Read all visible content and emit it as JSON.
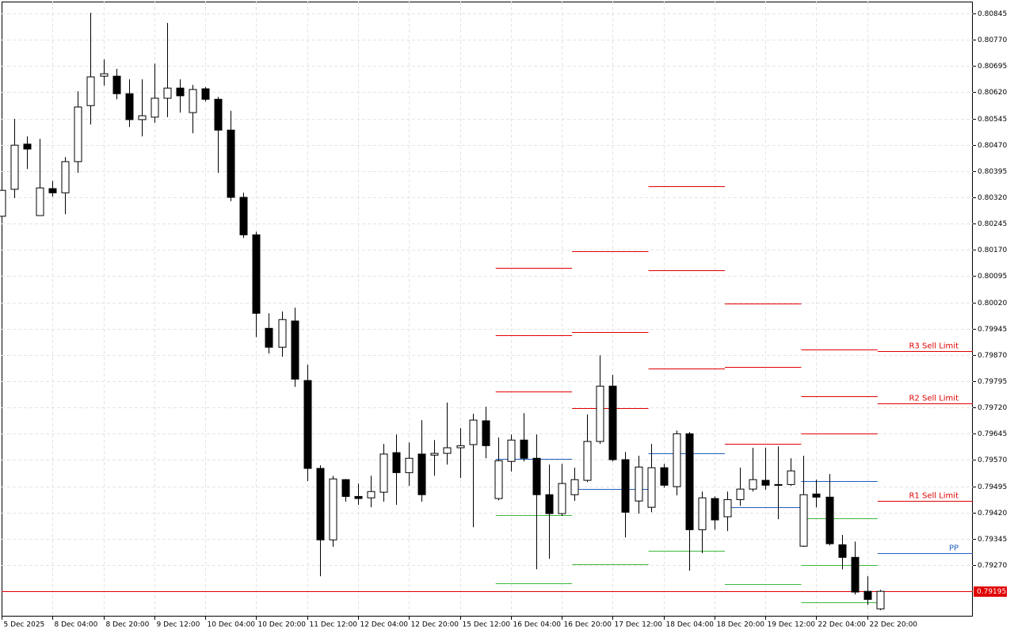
{
  "chart_data": {
    "type": "candlestick",
    "categories": [
      "5 Dec 2025",
      null,
      null,
      null,
      "8 Dec 04:00",
      null,
      null,
      null,
      "8 Dec 20:00",
      null,
      null,
      null,
      "9 Dec 12:00",
      null,
      null,
      null,
      "10 Dec 04:00",
      null,
      null,
      null,
      "10 Dec 20:00",
      null,
      null,
      null,
      "11 Dec 12:00",
      null,
      null,
      null,
      "12 Dec 04:00",
      null,
      null,
      null,
      "12 Dec 20:00",
      null,
      null,
      null,
      "15 Dec 12:00",
      null,
      null,
      null,
      "16 Dec 04:00",
      null,
      null,
      null,
      "16 Dec 20:00",
      null,
      null,
      null,
      "17 Dec 12:00",
      null,
      null,
      null,
      "18 Dec 04:00",
      null,
      null,
      null,
      "18 Dec 20:00",
      null,
      null,
      null,
      "19 Dec 12:00",
      null,
      null,
      null,
      "22 Dec 04:00",
      null,
      null,
      null,
      "22 Dec 20:00",
      null
    ],
    "open": [
      0.80266,
      0.80343,
      0.80472,
      0.80268,
      0.80345,
      0.80333,
      0.80422,
      0.80582,
      0.80666,
      0.80666,
      0.80616,
      0.80542,
      0.80549,
      0.80603,
      0.80632,
      0.80562,
      0.8063,
      0.806,
      0.80512,
      0.8032,
      0.80213,
      0.79946,
      0.79892,
      0.79967,
      0.79797,
      0.79546,
      0.79342,
      0.79514,
      0.79466,
      0.79462,
      0.79478,
      0.79591,
      0.79534,
      0.79587,
      0.79584,
      0.79589,
      0.79605,
      0.79614,
      0.79682,
      0.7946,
      0.79566,
      0.79627,
      0.79575,
      0.79471,
      0.79417,
      0.79471,
      0.79512,
      0.79623,
      0.79781,
      0.79571,
      0.79453,
      0.79435,
      0.79548,
      0.79494,
      0.79645,
      0.79371,
      0.7946,
      0.79408,
      0.79457,
      0.79487,
      0.79512,
      0.795,
      0.795,
      0.79324,
      0.79473,
      0.79464,
      0.79328,
      0.79292,
      0.79195,
      0.79145
    ],
    "high": [
      0.80352,
      0.80544,
      0.80494,
      0.80487,
      0.80367,
      0.80435,
      0.80623,
      0.80847,
      0.80714,
      0.80687,
      0.80657,
      0.80657,
      0.80702,
      0.80818,
      0.80657,
      0.80641,
      0.80635,
      0.80607,
      0.80567,
      0.80333,
      0.80222,
      0.79989,
      0.79994,
      0.80005,
      0.79842,
      0.79555,
      0.79525,
      0.79516,
      0.79503,
      0.79525,
      0.79616,
      0.79643,
      0.7962,
      0.79684,
      0.79627,
      0.79734,
      0.79661,
      0.79702,
      0.79722,
      0.79634,
      0.79643,
      0.79704,
      0.79643,
      0.79557,
      0.79559,
      0.79548,
      0.797,
      0.79869,
      0.79813,
      0.79593,
      0.79582,
      0.79616,
      0.79559,
      0.79654,
      0.7965,
      0.7948,
      0.79466,
      0.7948,
      0.79548,
      0.79605,
      0.79605,
      0.79609,
      0.79575,
      0.79582,
      0.79514,
      0.7953,
      0.79356,
      0.79337,
      0.79238,
      0.79199
    ],
    "low": [
      0.80261,
      0.80318,
      0.80401,
      0.80268,
      0.80322,
      0.80272,
      0.8039,
      0.80528,
      0.80639,
      0.806,
      0.80521,
      0.80494,
      0.80533,
      0.80549,
      0.80562,
      0.80503,
      0.80594,
      0.8039,
      0.80309,
      0.80204,
      0.79921,
      0.79874,
      0.79865,
      0.79779,
      0.7951,
      0.79238,
      0.79322,
      0.79451,
      0.79442,
      0.79435,
      0.79451,
      0.79442,
      0.79496,
      0.79451,
      0.79525,
      0.79557,
      0.79519,
      0.79378,
      0.79575,
      0.79455,
      0.79537,
      0.79566,
      0.79258,
      0.79288,
      0.7941,
      0.79453,
      0.79507,
      0.79616,
      0.79566,
      0.79349,
      0.79417,
      0.79421,
      0.79491,
      0.79469,
      0.79254,
      0.79304,
      0.79371,
      0.79367,
      0.79439,
      0.7948,
      0.79485,
      0.79401,
      0.79496,
      0.79322,
      0.79435,
      0.79326,
      0.79258,
      0.79186,
      0.79156,
      0.79141
    ],
    "close": [
      0.8034,
      0.80469,
      0.80458,
      0.80347,
      0.80333,
      0.80422,
      0.80578,
      0.80664,
      0.80673,
      0.80616,
      0.80542,
      0.80553,
      0.80603,
      0.80632,
      0.8061,
      0.80628,
      0.806,
      0.80512,
      0.8032,
      0.80213,
      0.79989,
      0.79892,
      0.79971,
      0.79801,
      0.79546,
      0.79342,
      0.79516,
      0.79466,
      0.7946,
      0.7948,
      0.79587,
      0.79534,
      0.79575,
      0.79471,
      0.79589,
      0.79605,
      0.79611,
      0.79684,
      0.79611,
      0.79568,
      0.79627,
      0.79575,
      0.79471,
      0.79417,
      0.79503,
      0.79514,
      0.79623,
      0.79781,
      0.79571,
      0.79421,
      0.7955,
      0.79548,
      0.79498,
      0.79645,
      0.79371,
      0.79462,
      0.79399,
      0.79457,
      0.79487,
      0.79514,
      0.79498,
      0.79498,
      0.79539,
      0.79471,
      0.79464,
      0.79331,
      0.79292,
      0.79193,
      0.79172,
      0.79195
    ],
    "bull_color": "#ffffff",
    "bear_color": "#000000",
    "ylim": [
      0.79123,
      0.80879
    ],
    "yticks": [
      0.80845,
      {
        "value": 0.8077,
        "label": "0.80770"
      },
      0.80695,
      {
        "value": 0.8062,
        "label": "0.80620"
      },
      0.80545,
      {
        "value": 0.8047,
        "label": "0.80470"
      },
      0.80395,
      {
        "value": 0.8032,
        "label": "0.80320"
      },
      0.80245,
      {
        "value": 0.8017,
        "label": "0.80170"
      },
      0.80095,
      {
        "value": 0.8002,
        "label": "0.80020"
      },
      0.79945,
      {
        "value": 0.7987,
        "label": "0.79870"
      },
      0.79795,
      {
        "value": 0.7972,
        "label": "0.79720"
      },
      0.79645,
      {
        "value": 0.7957,
        "label": "0.79570"
      },
      0.79495,
      {
        "value": 0.7942,
        "label": "0.79420"
      },
      0.79345,
      {
        "value": 0.7927,
        "label": "0.79270"
      }
    ],
    "grid": true,
    "current_price": 0.79195,
    "current_price_color": "#e00000",
    "pivots": [
      {
        "start": 39,
        "levels": [
          {
            "value": 0.80118,
            "color": "#e00000"
          },
          {
            "value": 0.79926,
            "color": "#e00000"
          },
          {
            "value": 0.79765,
            "color": "#e00000"
          },
          {
            "value": 0.79573,
            "color": "#1f5fbf"
          },
          {
            "value": 0.79412,
            "color": "#3cb83c"
          },
          {
            "value": 0.79217,
            "color": "#3cb83c"
          }
        ]
      },
      {
        "start": 45,
        "levels": [
          {
            "value": 0.80166,
            "color": "#e00000"
          },
          {
            "value": 0.79935,
            "color": "#e00000"
          },
          {
            "value": 0.79718,
            "color": "#e00000"
          },
          {
            "value": 0.79487,
            "color": "#1f5fbf"
          },
          {
            "value": 0.79272,
            "color": "#3cb83c"
          }
        ]
      },
      {
        "start": 51,
        "levels": [
          {
            "value": 0.80352,
            "color": "#e00000"
          },
          {
            "value": 0.80112,
            "color": "#e00000"
          },
          {
            "value": 0.79831,
            "color": "#e00000"
          },
          {
            "value": 0.79589,
            "color": "#1f5fbf"
          },
          {
            "value": 0.7931,
            "color": "#3cb83c"
          }
        ]
      },
      {
        "start": 57,
        "levels": [
          {
            "value": 0.80017,
            "color": "#e00000"
          },
          {
            "value": 0.79835,
            "color": "#e00000"
          },
          {
            "value": 0.79616,
            "color": "#e00000"
          },
          {
            "value": 0.79435,
            "color": "#1f5fbf"
          },
          {
            "value": 0.79215,
            "color": "#3cb83c"
          }
        ]
      },
      {
        "start": 63,
        "levels": [
          {
            "value": 0.79885,
            "color": "#e00000"
          },
          {
            "value": 0.79752,
            "color": "#e00000"
          },
          {
            "value": 0.79645,
            "color": "#e00000"
          },
          {
            "value": 0.7951,
            "color": "#1f5fbf"
          },
          {
            "value": 0.79403,
            "color": "#3cb83c"
          },
          {
            "value": 0.7927,
            "color": "#3cb83c"
          },
          {
            "value": 0.79163,
            "color": "#3cb83c"
          }
        ]
      },
      {
        "start": 69,
        "levels": [
          {
            "value": 0.79881,
            "color": "#e00000",
            "label": "R3 Sell Limit"
          },
          {
            "value": 0.79731,
            "color": "#e00000",
            "label": "R2 Sell Limit"
          },
          {
            "value": 0.79453,
            "color": "#e00000",
            "label": "R1 Sell Limit"
          },
          {
            "value": 0.79304,
            "color": "#1f5fbf",
            "label": "PP"
          }
        ]
      }
    ]
  }
}
